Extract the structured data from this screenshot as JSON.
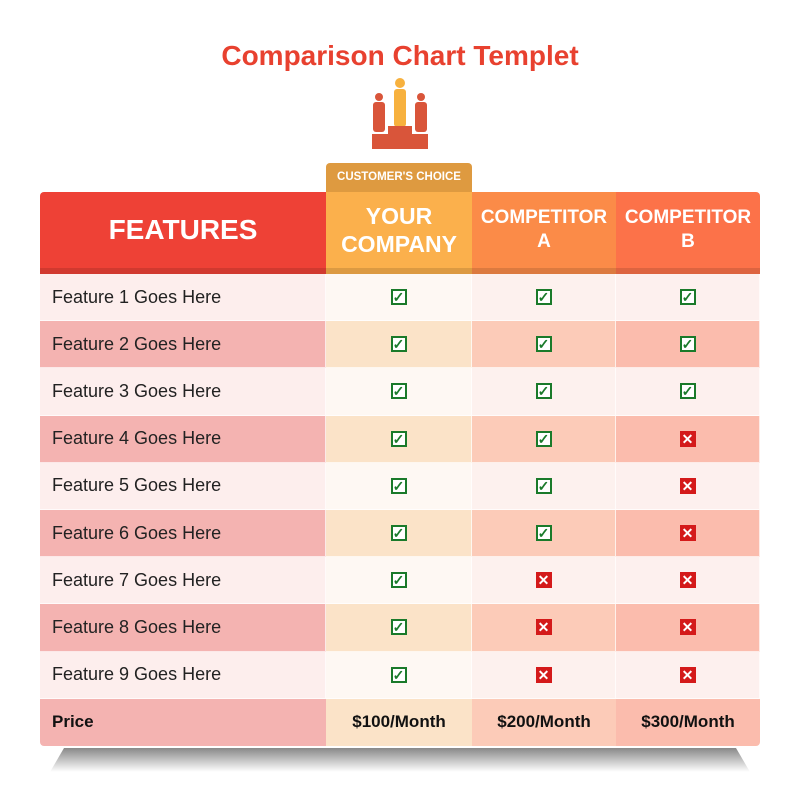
{
  "title": "Comparison Chart Templet",
  "icons": {
    "header": "podium-people-icon",
    "yes": "checkbox-checked-icon",
    "no": "checkbox-x-icon"
  },
  "colors": {
    "title": "#e8412f",
    "features_header": "#ee4136",
    "your_company_header": "#fbb04c",
    "competitor_a_header": "#fb8b48",
    "competitor_b_header": "#fc7249",
    "check": "#1a7a2a",
    "cross": "#d41a1a"
  },
  "badge": "CUSTOMER'S CHOICE",
  "headers": [
    "FEATURES",
    "YOUR COMPANY",
    "COMPETITOR A",
    "COMPETITOR B"
  ],
  "rows": [
    {
      "feature": "Feature 1 Goes Here",
      "values": [
        true,
        true,
        true
      ]
    },
    {
      "feature": "Feature 2 Goes Here",
      "values": [
        true,
        true,
        true
      ]
    },
    {
      "feature": "Feature 3 Goes Here",
      "values": [
        true,
        true,
        true
      ]
    },
    {
      "feature": "Feature 4 Goes Here",
      "values": [
        true,
        true,
        false
      ]
    },
    {
      "feature": "Feature 5 Goes Here",
      "values": [
        true,
        true,
        false
      ]
    },
    {
      "feature": "Feature 6 Goes Here",
      "values": [
        true,
        true,
        false
      ]
    },
    {
      "feature": "Feature 7 Goes Here",
      "values": [
        true,
        false,
        false
      ]
    },
    {
      "feature": "Feature 8 Goes Here",
      "values": [
        true,
        false,
        false
      ]
    },
    {
      "feature": "Feature 9 Goes Here",
      "values": [
        true,
        false,
        false
      ]
    }
  ],
  "price": {
    "label": "Price",
    "values": [
      "$100/Month",
      "$200/Month",
      "$300/Month"
    ]
  }
}
